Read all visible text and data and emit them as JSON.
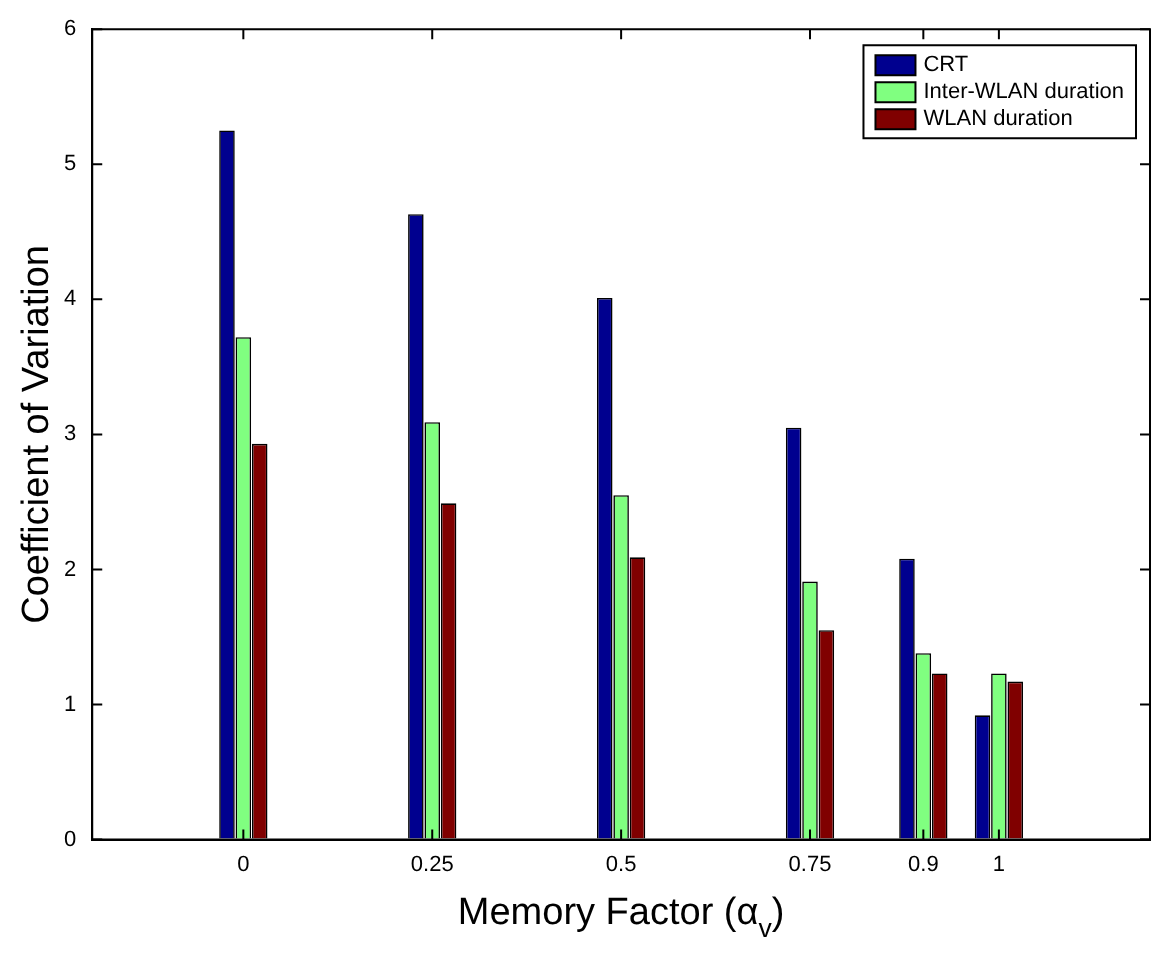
{
  "chart_data": {
    "type": "bar",
    "xlabel": "Memory Factor (α$_{v}$)",
    "ylabel": "Coefficient of Variation",
    "x": [
      0,
      0.25,
      0.5,
      0.75,
      0.9,
      1
    ],
    "series": [
      {
        "name": "CRT",
        "color": "#00008f",
        "values": [
          5.25,
          4.63,
          4.01,
          3.05,
          2.08,
          0.92
        ]
      },
      {
        "name": "Inter-WLAN duration",
        "color": "#80ff80",
        "values": [
          3.72,
          3.09,
          2.55,
          1.91,
          1.38,
          1.23
        ]
      },
      {
        "name": "WLAN duration",
        "color": "#800000",
        "values": [
          2.93,
          2.49,
          2.09,
          1.55,
          1.23,
          1.17
        ]
      }
    ],
    "xlim": [
      -0.2,
      1.2
    ],
    "xticks": [
      0,
      0.25,
      0.5,
      0.75,
      0.9,
      1
    ],
    "ylim": [
      0,
      6
    ],
    "yticks": [
      0,
      1,
      2,
      3,
      4,
      5,
      6
    ],
    "grid": false,
    "legend": "top right"
  }
}
